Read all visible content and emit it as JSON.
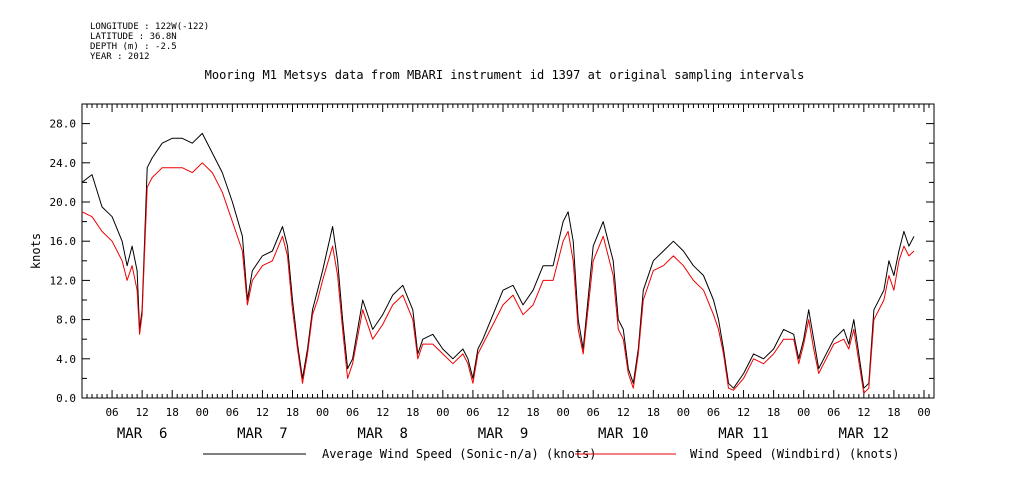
{
  "header": {
    "lines": [
      "LONGITUDE : 122W(-122)",
      "LATITUDE : 36.8N",
      "DEPTH (m) : -2.5",
      "YEAR : 2012"
    ]
  },
  "chart_data": {
    "type": "line",
    "title": "Mooring M1 Metsys data from MBARI instrument id 1397 at original sampling intervals",
    "ylabel": "knots",
    "xlabel": "",
    "ylim": [
      0,
      30
    ],
    "xlim_hours": [
      0,
      170
    ],
    "y_ticks": [
      "0.0",
      "4.0",
      "8.0",
      "12.0",
      "16.0",
      "20.0",
      "24.0",
      "28.0"
    ],
    "x_hour_ticks": [
      "06",
      "12",
      "18",
      "00",
      "06",
      "12",
      "18",
      "00",
      "06",
      "12",
      "18",
      "00",
      "06",
      "12",
      "18",
      "00",
      "06",
      "12",
      "18",
      "00",
      "06",
      "12",
      "18",
      "00",
      "06",
      "12",
      "18",
      "00"
    ],
    "x_day_labels": [
      "MAR  6",
      "MAR  7",
      "MAR  8",
      "MAR  9",
      "MAR 10",
      "MAR 11",
      "MAR 12"
    ],
    "grid": false,
    "legend": "bottom",
    "series": [
      {
        "name": "Average Wind Speed (Sonic-n/a) (knots)",
        "color": "#000000",
        "points": [
          [
            0,
            22
          ],
          [
            2,
            22.8
          ],
          [
            4,
            19.5
          ],
          [
            6,
            18.5
          ],
          [
            8,
            16
          ],
          [
            9,
            13.5
          ],
          [
            10,
            15.5
          ],
          [
            11,
            13
          ],
          [
            11.5,
            7
          ],
          [
            12,
            9
          ],
          [
            13,
            23.5
          ],
          [
            14,
            24.5
          ],
          [
            16,
            26
          ],
          [
            18,
            26.5
          ],
          [
            20,
            26.5
          ],
          [
            22,
            26
          ],
          [
            24,
            27
          ],
          [
            26,
            25
          ],
          [
            28,
            23
          ],
          [
            30,
            20
          ],
          [
            32,
            16.5
          ],
          [
            33,
            10
          ],
          [
            34,
            13
          ],
          [
            36,
            14.5
          ],
          [
            38,
            15
          ],
          [
            40,
            17.5
          ],
          [
            41,
            15.5
          ],
          [
            42,
            10
          ],
          [
            43,
            5.5
          ],
          [
            44,
            2
          ],
          [
            45,
            5
          ],
          [
            46,
            9
          ],
          [
            47,
            11
          ],
          [
            48,
            13
          ],
          [
            50,
            17.5
          ],
          [
            51,
            14
          ],
          [
            52,
            8
          ],
          [
            53,
            3
          ],
          [
            54,
            4
          ],
          [
            56,
            10
          ],
          [
            58,
            7
          ],
          [
            60,
            8.5
          ],
          [
            62,
            10.5
          ],
          [
            64,
            11.5
          ],
          [
            66,
            9
          ],
          [
            67,
            4.5
          ],
          [
            68,
            6
          ],
          [
            70,
            6.5
          ],
          [
            72,
            5
          ],
          [
            74,
            4
          ],
          [
            76,
            5
          ],
          [
            77,
            4
          ],
          [
            78,
            2
          ],
          [
            79,
            5
          ],
          [
            80,
            6
          ],
          [
            82,
            8.5
          ],
          [
            84,
            11
          ],
          [
            86,
            11.5
          ],
          [
            88,
            9.5
          ],
          [
            90,
            11
          ],
          [
            92,
            13.5
          ],
          [
            94,
            13.5
          ],
          [
            96,
            18
          ],
          [
            97,
            19
          ],
          [
            98,
            16
          ],
          [
            99,
            8
          ],
          [
            100,
            5
          ],
          [
            102,
            15.5
          ],
          [
            104,
            18
          ],
          [
            106,
            14
          ],
          [
            107,
            8
          ],
          [
            108,
            7
          ],
          [
            109,
            3
          ],
          [
            110,
            1.5
          ],
          [
            111,
            5
          ],
          [
            112,
            11
          ],
          [
            114,
            14
          ],
          [
            116,
            15
          ],
          [
            118,
            16
          ],
          [
            120,
            15
          ],
          [
            122,
            13.5
          ],
          [
            124,
            12.5
          ],
          [
            126,
            10
          ],
          [
            127,
            8
          ],
          [
            128,
            5
          ],
          [
            129,
            1.5
          ],
          [
            130,
            1
          ],
          [
            132,
            2.5
          ],
          [
            134,
            4.5
          ],
          [
            136,
            4
          ],
          [
            138,
            5
          ],
          [
            140,
            7
          ],
          [
            142,
            6.5
          ],
          [
            143,
            4
          ],
          [
            144,
            6
          ],
          [
            145,
            9
          ],
          [
            146,
            6
          ],
          [
            147,
            3
          ],
          [
            148,
            4
          ],
          [
            150,
            6
          ],
          [
            152,
            7
          ],
          [
            153,
            5.5
          ],
          [
            154,
            8
          ],
          [
            156,
            1
          ],
          [
            157,
            1.5
          ],
          [
            158,
            9
          ],
          [
            160,
            11
          ],
          [
            161,
            14
          ],
          [
            162,
            12.5
          ],
          [
            163,
            15
          ],
          [
            164,
            17
          ],
          [
            165,
            15.5
          ],
          [
            166,
            16.5
          ]
        ]
      },
      {
        "name": "Wind Speed (Windbird) (knots)",
        "color": "#ee0000",
        "points": [
          [
            0,
            19
          ],
          [
            2,
            18.5
          ],
          [
            4,
            17
          ],
          [
            6,
            16
          ],
          [
            8,
            14
          ],
          [
            9,
            12
          ],
          [
            10,
            13.5
          ],
          [
            11,
            11
          ],
          [
            11.5,
            6.5
          ],
          [
            12,
            8.5
          ],
          [
            13,
            21.5
          ],
          [
            14,
            22.5
          ],
          [
            16,
            23.5
          ],
          [
            18,
            23.5
          ],
          [
            20,
            23.5
          ],
          [
            22,
            23
          ],
          [
            24,
            24
          ],
          [
            26,
            23
          ],
          [
            28,
            21
          ],
          [
            30,
            18
          ],
          [
            32,
            15
          ],
          [
            33,
            9.5
          ],
          [
            34,
            12
          ],
          [
            36,
            13.5
          ],
          [
            38,
            14
          ],
          [
            40,
            16.5
          ],
          [
            41,
            14.5
          ],
          [
            42,
            9
          ],
          [
            43,
            5
          ],
          [
            44,
            1.5
          ],
          [
            45,
            4.5
          ],
          [
            46,
            8.5
          ],
          [
            47,
            10
          ],
          [
            48,
            12
          ],
          [
            50,
            15.5
          ],
          [
            51,
            12.5
          ],
          [
            52,
            7
          ],
          [
            53,
            2
          ],
          [
            54,
            3.5
          ],
          [
            56,
            9
          ],
          [
            58,
            6
          ],
          [
            60,
            7.5
          ],
          [
            62,
            9.5
          ],
          [
            64,
            10.5
          ],
          [
            66,
            8
          ],
          [
            67,
            4
          ],
          [
            68,
            5.5
          ],
          [
            70,
            5.5
          ],
          [
            72,
            4.5
          ],
          [
            74,
            3.5
          ],
          [
            76,
            4.5
          ],
          [
            77,
            3.5
          ],
          [
            78,
            1.5
          ],
          [
            79,
            4.5
          ],
          [
            80,
            5.5
          ],
          [
            82,
            7.5
          ],
          [
            84,
            9.5
          ],
          [
            86,
            10.5
          ],
          [
            88,
            8.5
          ],
          [
            90,
            9.5
          ],
          [
            92,
            12
          ],
          [
            94,
            12
          ],
          [
            96,
            16
          ],
          [
            97,
            17
          ],
          [
            98,
            14
          ],
          [
            99,
            7
          ],
          [
            100,
            4.5
          ],
          [
            102,
            14
          ],
          [
            104,
            16.5
          ],
          [
            106,
            12.5
          ],
          [
            107,
            7
          ],
          [
            108,
            6
          ],
          [
            109,
            2.5
          ],
          [
            110,
            1
          ],
          [
            111,
            4.5
          ],
          [
            112,
            10
          ],
          [
            114,
            13
          ],
          [
            116,
            13.5
          ],
          [
            118,
            14.5
          ],
          [
            120,
            13.5
          ],
          [
            122,
            12
          ],
          [
            124,
            11
          ],
          [
            126,
            8.5
          ],
          [
            127,
            7
          ],
          [
            128,
            4.5
          ],
          [
            129,
            1
          ],
          [
            130,
            0.8
          ],
          [
            132,
            2
          ],
          [
            134,
            4
          ],
          [
            136,
            3.5
          ],
          [
            138,
            4.5
          ],
          [
            140,
            6
          ],
          [
            142,
            6
          ],
          [
            143,
            3.5
          ],
          [
            144,
            5.5
          ],
          [
            145,
            8
          ],
          [
            146,
            5
          ],
          [
            147,
            2.5
          ],
          [
            148,
            3.5
          ],
          [
            150,
            5.5
          ],
          [
            152,
            6
          ],
          [
            153,
            5
          ],
          [
            154,
            7
          ],
          [
            156,
            0.5
          ],
          [
            157,
            1
          ],
          [
            158,
            8
          ],
          [
            160,
            10
          ],
          [
            161,
            12.5
          ],
          [
            162,
            11
          ],
          [
            163,
            14
          ],
          [
            164,
            15.5
          ],
          [
            165,
            14.5
          ],
          [
            166,
            15
          ]
        ]
      }
    ]
  }
}
